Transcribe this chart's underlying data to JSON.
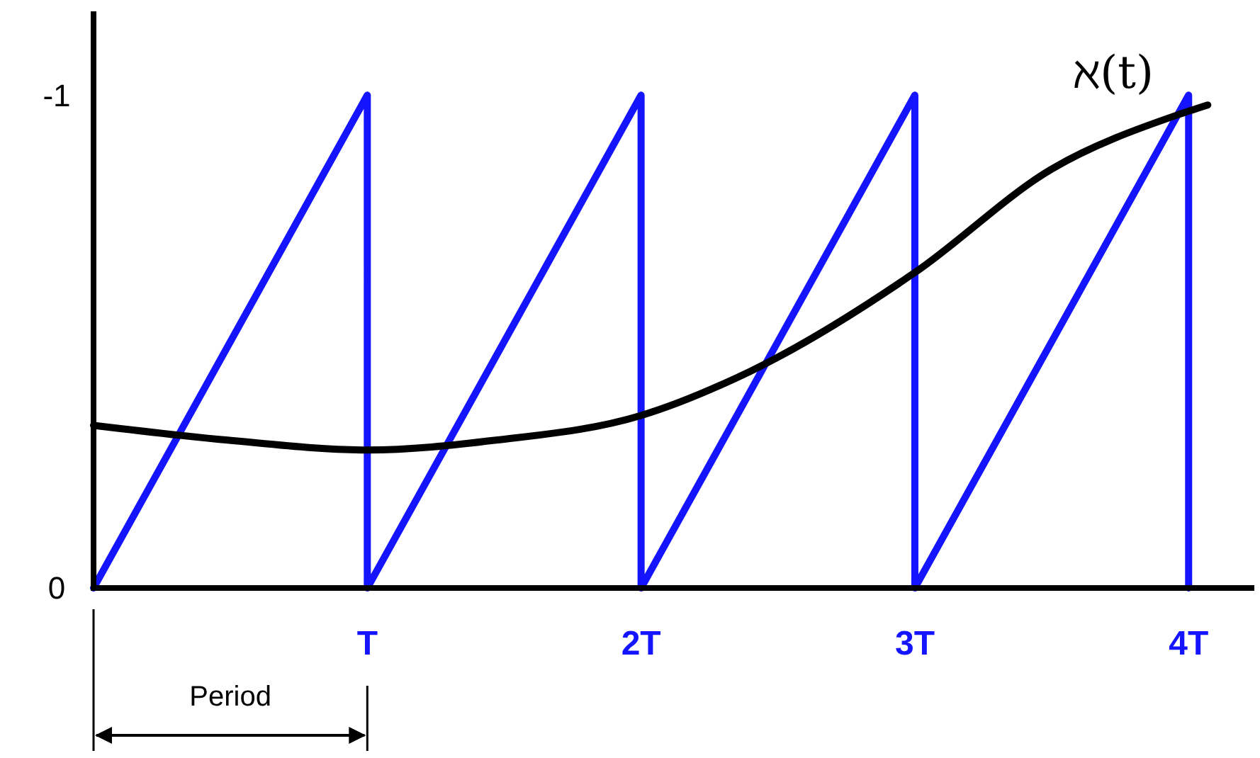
{
  "chart_data": {
    "type": "line",
    "xlim": [
      0,
      4.24
    ],
    "ylim": [
      0,
      -1.17
    ],
    "xticks": [
      {
        "value": 1,
        "label": "T"
      },
      {
        "value": 2,
        "label": "2T"
      },
      {
        "value": 3,
        "label": "3T"
      },
      {
        "value": 4,
        "label": "4T"
      }
    ],
    "yticks": [
      0,
      -1
    ],
    "series": [
      {
        "color": "#1414ff",
        "x": [
          0,
          1,
          1,
          2,
          2,
          3,
          3,
          4,
          4
        ],
        "values": [
          0,
          -1,
          0,
          -1,
          0,
          -1,
          0,
          -1,
          0
        ]
      },
      {
        "name": "ℵ(t)",
        "color": "#000000",
        "x": [
          0,
          0.49,
          1,
          1.47,
          2,
          2.4,
          3,
          3.5,
          3.96,
          4.07
        ],
        "values": [
          -0.33,
          -0.3,
          -0.28,
          -0.3,
          -0.35,
          -0.44,
          -0.64,
          -0.85,
          -0.96,
          -0.98
        ]
      }
    ],
    "annotations": [
      "Period"
    ]
  }
}
